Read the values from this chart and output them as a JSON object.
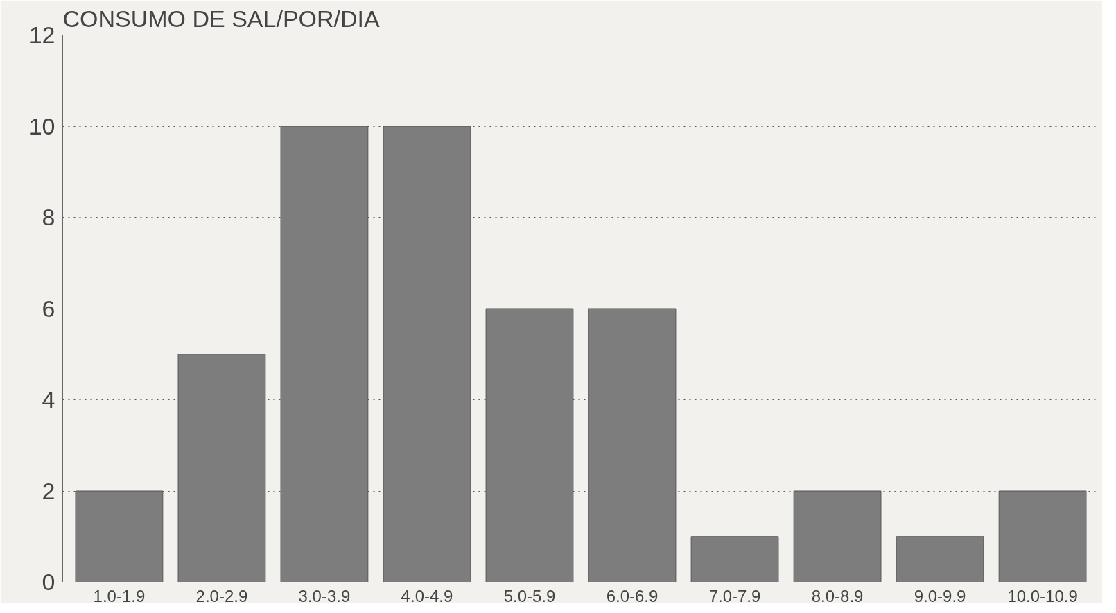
{
  "chart_data": {
    "type": "bar",
    "title": "CONSUMO DE SAL/POR/DIA",
    "categories": [
      "1.0-1.9",
      "2.0-2.9",
      "3.0-3.9",
      "4.0-4.9",
      "5.0-5.9",
      "6.0-6.9",
      "7.0-7.9",
      "8.0-8.9",
      "9.0-9.9",
      "10.0-10.9"
    ],
    "values": [
      2,
      5,
      10,
      10,
      6,
      6,
      1,
      2,
      1,
      2
    ],
    "color": "#7d7d7d",
    "ylim": [
      0,
      12
    ],
    "yticks": [
      0,
      2,
      4,
      6,
      8,
      10,
      12
    ],
    "grid": "y"
  }
}
